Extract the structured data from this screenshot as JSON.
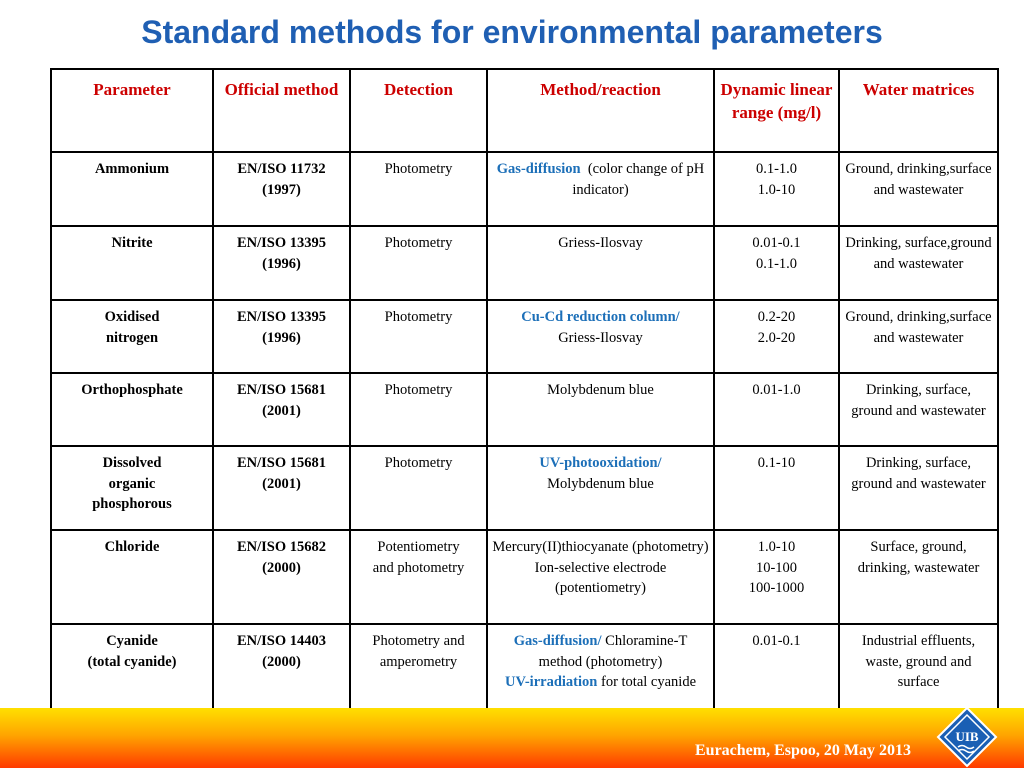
{
  "title": "Standard methods for environmental parameters",
  "headers": [
    "Parameter",
    "Official method",
    "Detection",
    "Method/reaction",
    "Dynamic linear range (mg/l)",
    "Water matrices"
  ],
  "rows": [
    {
      "parameter": [
        "Ammonium"
      ],
      "method": [
        "EN/ISO 11732",
        "(1997)"
      ],
      "detection": [
        "Photometry"
      ],
      "reaction_blue": "Gas-diffusion",
      "reaction_rest": "  (color change of pH indicator)",
      "range": [
        "0.1-1.0",
        "1.0-10"
      ],
      "matrices": "Ground, drinking,surface and wastewater"
    },
    {
      "parameter": [
        "Nitrite"
      ],
      "method": [
        "EN/ISO 13395",
        "(1996)"
      ],
      "detection": [
        "Photometry"
      ],
      "reaction_blue": "",
      "reaction_rest": "Griess-Ilosvay",
      "range": [
        "0.01-0.1",
        "0.1-1.0"
      ],
      "matrices": "Drinking, surface,ground and wastewater"
    },
    {
      "parameter": [
        "Oxidised",
        "nitrogen"
      ],
      "method": [
        "EN/ISO 13395",
        "(1996)"
      ],
      "detection": [
        "Photometry"
      ],
      "reaction_blue": "Cu-Cd reduction column/",
      "reaction_rest": " Griess-Ilosvay",
      "range": [
        "0.2-20",
        "2.0-20"
      ],
      "matrices": "Ground, drinking,surface and wastewater"
    },
    {
      "parameter": [
        "Orthophosphate"
      ],
      "method": [
        "EN/ISO 15681",
        "(2001)"
      ],
      "detection": [
        "Photometry"
      ],
      "reaction_blue": "",
      "reaction_rest": "Molybdenum blue",
      "range": [
        "0.01-1.0"
      ],
      "matrices": "Drinking, surface, ground and wastewater"
    },
    {
      "parameter": [
        "Dissolved",
        "organic",
        "phosphorous"
      ],
      "method": [
        "EN/ISO 15681",
        "(2001)"
      ],
      "detection": [
        "Photometry"
      ],
      "reaction_blue": "UV-photooxidation/",
      "reaction_rest": " Molybdenum blue",
      "range": [
        "0.1-10"
      ],
      "matrices": "Drinking, surface, ground and wastewater"
    },
    {
      "parameter": [
        "Chloride"
      ],
      "method": [
        "EN/ISO 15682",
        "(2000)"
      ],
      "detection": [
        "Potentiometry",
        "and photometry"
      ],
      "reaction_blue": "",
      "reaction_rest": "Mercury(II)thiocyanate (photometry) Ion-selective electrode (potentiometry)",
      "range": [
        "1.0-10",
        "10-100",
        "100-1000"
      ],
      "matrices": "Surface, ground, drinking, wastewater"
    },
    {
      "parameter": [
        "Cyanide",
        "(total cyanide)"
      ],
      "method": [
        "EN/ISO 14403",
        "(2000)"
      ],
      "detection": [
        "Photometry and",
        "amperometry"
      ],
      "reaction_blue": "Gas-diffusion/",
      "reaction_rest": " Chloramine-T method (photometry)",
      "reaction_blue2": "UV-irradiation",
      "reaction_rest2": " for total cyanide",
      "range": [
        "0.01-0.1"
      ],
      "matrices": "Industrial effluents, waste, ground and surface"
    }
  ],
  "footer": "Eurachem, Espoo, 20 May 2013",
  "logo_text": "UIB",
  "colors": {
    "title": "#1f5fb3",
    "header": "#cc0000",
    "accent_blue": "#1c6fb8"
  }
}
